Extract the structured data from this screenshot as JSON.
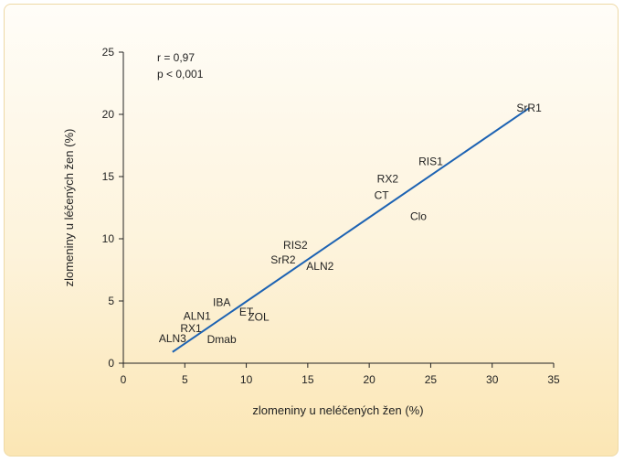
{
  "colors": {
    "frame_border": "#eed9a6",
    "background_top": "#fffdf8",
    "background_bottom": "#fbe6b4",
    "fit_line": "#1d63b3",
    "text": "#222222"
  },
  "chart_data": {
    "type": "scatter",
    "title": "",
    "xlabel": "zlomeniny u neléčených žen (%)",
    "ylabel": "zlomeniny u léčených žen (%)",
    "xlim": [
      0,
      35
    ],
    "ylim": [
      0,
      25
    ],
    "x_ticks": [
      0,
      5,
      10,
      15,
      20,
      25,
      30,
      35
    ],
    "y_ticks": [
      0,
      5,
      10,
      15,
      20,
      25
    ],
    "grid": false,
    "legend": "none",
    "annotations": [
      "r = 0,97",
      "p < 0,001"
    ],
    "points": [
      {
        "label": "SrR1",
        "x": 33.0,
        "y": 20.5
      },
      {
        "label": "RIS1",
        "x": 25.0,
        "y": 16.2
      },
      {
        "label": "RX2",
        "x": 21.5,
        "y": 14.8
      },
      {
        "label": "CT",
        "x": 21.0,
        "y": 13.5
      },
      {
        "label": "Clo",
        "x": 24.0,
        "y": 11.8
      },
      {
        "label": "RIS2",
        "x": 14.0,
        "y": 9.5
      },
      {
        "label": "SrR2",
        "x": 13.0,
        "y": 8.3
      },
      {
        "label": "ALN2",
        "x": 16.0,
        "y": 7.8
      },
      {
        "label": "IBA",
        "x": 8.0,
        "y": 4.9
      },
      {
        "label": "ET",
        "x": 10.0,
        "y": 4.1
      },
      {
        "label": "ZOL",
        "x": 11.0,
        "y": 3.7
      },
      {
        "label": "ALN1",
        "x": 6.0,
        "y": 3.8
      },
      {
        "label": "RX1",
        "x": 5.5,
        "y": 2.8
      },
      {
        "label": "ALN3",
        "x": 4.0,
        "y": 2.0
      },
      {
        "label": "Dmab",
        "x": 8.0,
        "y": 1.9
      }
    ],
    "fit_line": {
      "x": [
        4.0,
        33.0
      ],
      "y": [
        0.9,
        20.5
      ]
    }
  }
}
